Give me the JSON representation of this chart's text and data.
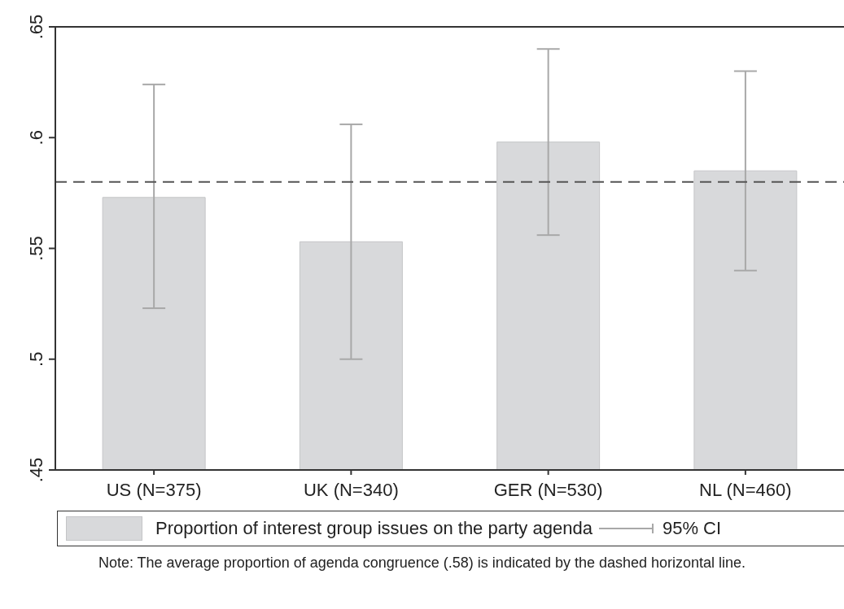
{
  "chart_data": {
    "type": "bar",
    "categories": [
      "US (N=375)",
      "UK (N=340)",
      "GER (N=530)",
      "NL (N=460)"
    ],
    "series": [
      {
        "name": "Proportion of interest group issues on the party agenda",
        "color": "#d8d9db",
        "values": [
          0.573,
          0.553,
          0.598,
          0.585
        ],
        "errors": [
          [
            0.523,
            0.624
          ],
          [
            0.5,
            0.606
          ],
          [
            0.556,
            0.64
          ],
          [
            0.54,
            0.63
          ]
        ]
      }
    ],
    "ylim": [
      0.45,
      0.65
    ],
    "yticks": [
      {
        "value": 0.45,
        "label": ".45"
      },
      {
        "value": 0.5,
        "label": ".5"
      },
      {
        "value": 0.55,
        "label": ".55"
      },
      {
        "value": 0.6,
        "label": ".6"
      },
      {
        "value": 0.65,
        "label": ".65"
      }
    ],
    "ref_lines": [
      {
        "axis": "y",
        "value": 0.58,
        "color": "#555555",
        "line_style": "dashed"
      }
    ],
    "grid": false,
    "legend": "bottom",
    "annotations": [
      "95% CI",
      "Note: The average proportion of agenda congruence (.58) is indicated by the dashed horizontal line."
    ]
  }
}
